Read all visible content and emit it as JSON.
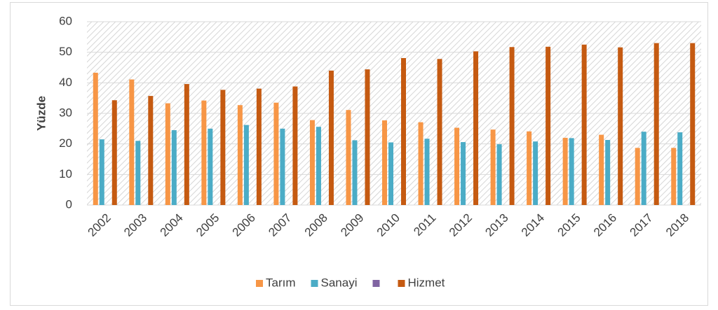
{
  "chart_data": {
    "type": "bar",
    "categories": [
      "2002",
      "2003",
      "2004",
      "2005",
      "2006",
      "2007",
      "2008",
      "2009",
      "2010",
      "2011",
      "2012",
      "2013",
      "2014",
      "2015",
      "2016",
      "2017",
      "2018"
    ],
    "series": [
      {
        "name": "Tarım",
        "color": "#f79646",
        "values": [
          43.3,
          41.1,
          33.3,
          34.2,
          32.7,
          33.5,
          27.8,
          31.1,
          27.7,
          27.1,
          25.3,
          24.7,
          24.1,
          22.0,
          23.0,
          18.7,
          18.7
        ]
      },
      {
        "name": "Sanayi",
        "color": "#4bacc6",
        "values": [
          21.5,
          21.0,
          24.5,
          25.0,
          26.2,
          25.0,
          25.6,
          21.2,
          20.5,
          21.7,
          20.6,
          19.9,
          20.8,
          21.9,
          21.3,
          24.0,
          23.8
        ]
      },
      {
        "name": null,
        "color": "#8064a2",
        "values": [
          null,
          null,
          null,
          null,
          null,
          null,
          null,
          null,
          null,
          null,
          null,
          null,
          null,
          null,
          null,
          null,
          null
        ]
      },
      {
        "name": "Hizmet",
        "color": "#c55a11",
        "values": [
          34.3,
          35.7,
          39.6,
          37.7,
          38.1,
          38.8,
          44.0,
          44.4,
          48.1,
          47.8,
          50.3,
          51.7,
          51.8,
          52.5,
          51.6,
          53.0,
          53.0
        ]
      }
    ],
    "ylabel": "Yüzde",
    "ylim": [
      0,
      60
    ],
    "yticks": [
      0,
      10,
      20,
      30,
      40,
      50,
      60
    ],
    "grid": true
  }
}
